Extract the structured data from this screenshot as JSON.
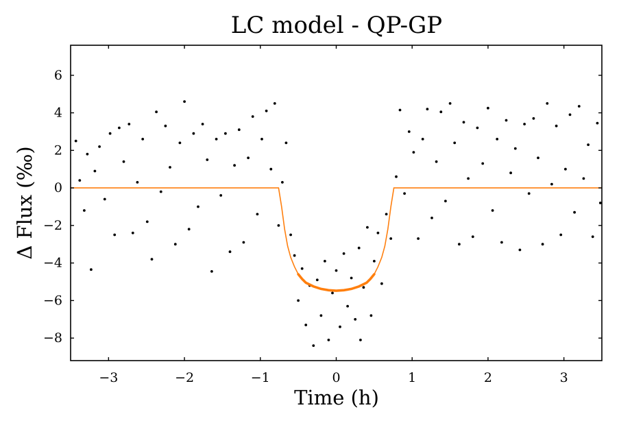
{
  "chart_data": {
    "type": "scatter",
    "title": "LC model - QP-GP",
    "xlabel": "Time (h)",
    "ylabel": "Δ Flux (‰)",
    "xlim": [
      -3.5,
      3.5
    ],
    "ylim": [
      -9.2,
      7.6
    ],
    "xticks": [
      -3,
      -2,
      -1,
      0,
      1,
      2,
      3
    ],
    "xtick_labels": [
      "−3",
      "−2",
      "−1",
      "0",
      "1",
      "2",
      "3"
    ],
    "yticks": [
      6,
      4,
      2,
      0,
      -2,
      -4,
      -6,
      -8
    ],
    "ytick_labels": [
      "6",
      "4",
      "2",
      "0",
      "−2",
      "−4",
      "−6",
      "−8"
    ],
    "grid": false,
    "series": [
      {
        "kind": "scatter",
        "color": "#000000",
        "points": [
          [
            -3.43,
            2.5
          ],
          [
            -3.38,
            0.4
          ],
          [
            -3.32,
            -1.2
          ],
          [
            -3.28,
            1.8
          ],
          [
            -3.23,
            -4.35
          ],
          [
            -3.18,
            0.9
          ],
          [
            -3.12,
            2.2
          ],
          [
            -3.05,
            -0.6
          ],
          [
            -2.98,
            2.9
          ],
          [
            -2.92,
            -2.5
          ],
          [
            -2.86,
            3.2
          ],
          [
            -2.8,
            1.4
          ],
          [
            -2.73,
            3.4
          ],
          [
            -2.68,
            -2.4
          ],
          [
            -2.62,
            0.3
          ],
          [
            -2.55,
            2.6
          ],
          [
            -2.49,
            -1.8
          ],
          [
            -2.43,
            -3.8
          ],
          [
            -2.37,
            4.05
          ],
          [
            -2.31,
            -0.2
          ],
          [
            -2.25,
            3.3
          ],
          [
            -2.19,
            1.1
          ],
          [
            -2.12,
            -3.0
          ],
          [
            -2.06,
            2.4
          ],
          [
            -2.0,
            4.6
          ],
          [
            -1.94,
            -2.2
          ],
          [
            -1.88,
            2.9
          ],
          [
            -1.82,
            -1.0
          ],
          [
            -1.76,
            3.4
          ],
          [
            -1.7,
            1.5
          ],
          [
            -1.64,
            -4.45
          ],
          [
            -1.58,
            2.6
          ],
          [
            -1.52,
            -0.4
          ],
          [
            -1.46,
            2.9
          ],
          [
            -1.4,
            -3.4
          ],
          [
            -1.34,
            1.2
          ],
          [
            -1.28,
            3.1
          ],
          [
            -1.22,
            -2.9
          ],
          [
            -1.16,
            1.6
          ],
          [
            -1.1,
            3.8
          ],
          [
            -1.04,
            -1.4
          ],
          [
            -0.98,
            2.6
          ],
          [
            -0.92,
            4.1
          ],
          [
            -0.86,
            1.0
          ],
          [
            -0.81,
            4.5
          ],
          [
            -0.76,
            -2.0
          ],
          [
            -0.71,
            0.3
          ],
          [
            -0.66,
            2.4
          ],
          [
            -0.6,
            -2.5
          ],
          [
            -0.55,
            -3.6
          ],
          [
            -0.5,
            -6.0
          ],
          [
            -0.45,
            -4.3
          ],
          [
            -0.4,
            -7.3
          ],
          [
            -0.35,
            -5.2
          ],
          [
            -0.3,
            -8.4
          ],
          [
            -0.25,
            -4.9
          ],
          [
            -0.2,
            -6.8
          ],
          [
            -0.15,
            -3.9
          ],
          [
            -0.1,
            -8.1
          ],
          [
            -0.05,
            -5.6
          ],
          [
            0.0,
            -4.4
          ],
          [
            0.05,
            -7.4
          ],
          [
            0.1,
            -3.5
          ],
          [
            0.15,
            -6.3
          ],
          [
            0.2,
            -4.8
          ],
          [
            0.25,
            -7.0
          ],
          [
            0.3,
            -3.2
          ],
          [
            0.32,
            -8.1
          ],
          [
            0.36,
            -5.3
          ],
          [
            0.41,
            -2.1
          ],
          [
            0.46,
            -6.8
          ],
          [
            0.5,
            -3.9
          ],
          [
            0.55,
            -2.4
          ],
          [
            0.6,
            -5.1
          ],
          [
            0.66,
            -1.4
          ],
          [
            0.72,
            -2.7
          ],
          [
            0.79,
            0.6
          ],
          [
            0.84,
            4.15
          ],
          [
            0.9,
            -0.3
          ],
          [
            0.96,
            3.0
          ],
          [
            1.02,
            1.9
          ],
          [
            1.08,
            -2.7
          ],
          [
            1.14,
            2.6
          ],
          [
            1.2,
            4.2
          ],
          [
            1.26,
            -1.6
          ],
          [
            1.32,
            1.4
          ],
          [
            1.38,
            4.05
          ],
          [
            1.44,
            -0.7
          ],
          [
            1.5,
            4.5
          ],
          [
            1.56,
            2.4
          ],
          [
            1.62,
            -3.0
          ],
          [
            1.68,
            3.5
          ],
          [
            1.74,
            0.5
          ],
          [
            1.8,
            -2.6
          ],
          [
            1.86,
            3.2
          ],
          [
            1.93,
            1.3
          ],
          [
            2.0,
            4.25
          ],
          [
            2.06,
            -1.2
          ],
          [
            2.12,
            2.6
          ],
          [
            2.18,
            -2.9
          ],
          [
            2.24,
            3.6
          ],
          [
            2.3,
            0.8
          ],
          [
            2.36,
            2.1
          ],
          [
            2.42,
            -3.3
          ],
          [
            2.48,
            3.4
          ],
          [
            2.54,
            -0.3
          ],
          [
            2.6,
            3.7
          ],
          [
            2.66,
            1.6
          ],
          [
            2.72,
            -3.0
          ],
          [
            2.78,
            4.5
          ],
          [
            2.84,
            0.2
          ],
          [
            2.9,
            3.3
          ],
          [
            2.96,
            -2.5
          ],
          [
            3.02,
            1.0
          ],
          [
            3.08,
            3.9
          ],
          [
            3.14,
            -1.3
          ],
          [
            3.2,
            4.35
          ],
          [
            3.26,
            0.5
          ],
          [
            3.32,
            2.3
          ],
          [
            3.38,
            -2.6
          ],
          [
            3.44,
            3.45
          ],
          [
            3.48,
            -0.8
          ]
        ]
      },
      {
        "kind": "line",
        "color": "#ff7f0e",
        "points": [
          [
            -3.5,
            0.0
          ],
          [
            -0.76,
            0.0
          ],
          [
            -0.72,
            -1.0
          ],
          [
            -0.68,
            -2.2
          ],
          [
            -0.64,
            -3.1
          ],
          [
            -0.6,
            -3.7
          ],
          [
            -0.55,
            -4.2
          ],
          [
            -0.5,
            -4.6
          ],
          [
            -0.45,
            -4.85
          ],
          [
            -0.4,
            -5.05
          ],
          [
            -0.3,
            -5.25
          ],
          [
            -0.2,
            -5.38
          ],
          [
            -0.1,
            -5.45
          ],
          [
            0.0,
            -5.48
          ],
          [
            0.1,
            -5.45
          ],
          [
            0.2,
            -5.38
          ],
          [
            0.3,
            -5.25
          ],
          [
            0.4,
            -5.05
          ],
          [
            0.45,
            -4.85
          ],
          [
            0.5,
            -4.6
          ],
          [
            0.55,
            -4.2
          ],
          [
            0.6,
            -3.7
          ],
          [
            0.64,
            -3.1
          ],
          [
            0.68,
            -2.2
          ],
          [
            0.72,
            -1.0
          ],
          [
            0.76,
            0.0
          ],
          [
            3.5,
            0.0
          ]
        ]
      }
    ]
  }
}
